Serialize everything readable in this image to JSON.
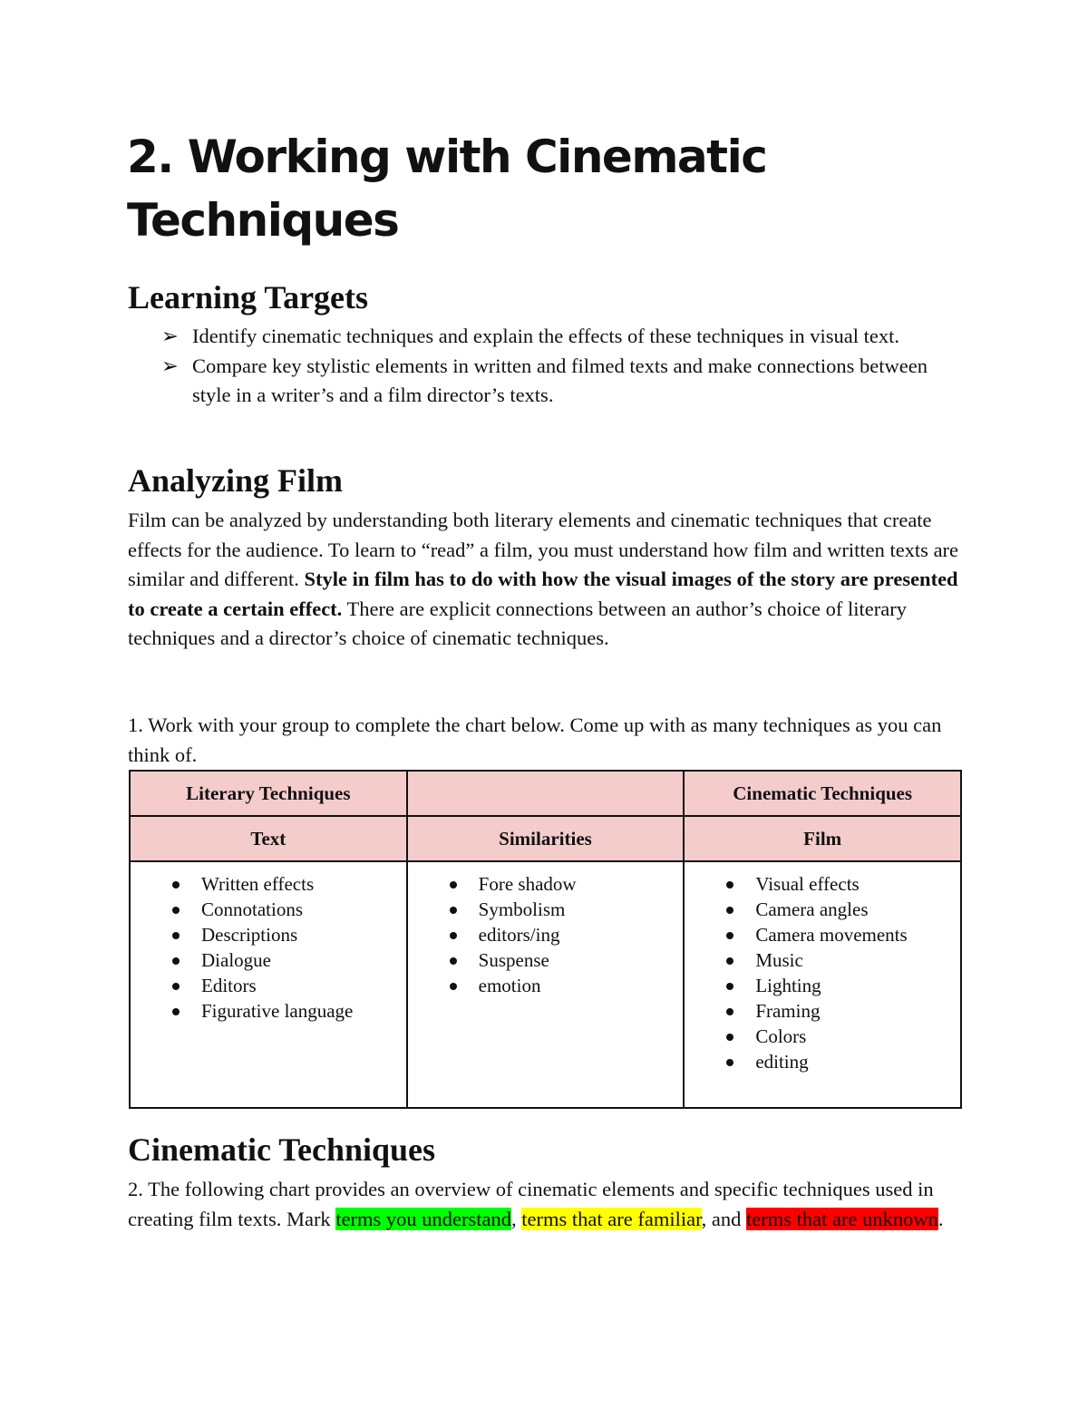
{
  "title": "2. Working with Cinematic Techniques",
  "learning_targets": {
    "heading": "Learning Targets",
    "bullet_icon": "arrowhead-right",
    "items": [
      "Identify cinematic techniques and explain the effects of these techniques in visual text.",
      "Compare key stylistic elements in written and filmed texts and make connections between style in a writer’s and a film director’s texts."
    ]
  },
  "analyzing_film": {
    "heading": "Analyzing Film",
    "text_before": "Film can be analyzed by understanding both literary elements and cinematic techniques that create effects for the audience. To learn to “read” a film, you must understand how film and written texts are similar and different. ",
    "text_bold": "Style in film has to do with how the visual images of the story are presented to create a certain effect.",
    "text_after": " There are explicit connections between an author’s choice of literary techniques and a director’s choice of cinematic techniques.",
    "instruction": "1. Work with your group to complete the chart below. Come up with as many techniques as you can think of."
  },
  "chart": {
    "header_row1": [
      "Literary Techniques",
      "",
      "Cinematic Techniques"
    ],
    "header_row2": [
      "Text",
      "Similarities",
      "Film"
    ],
    "header_color": "#f4cccc",
    "text_items": [
      "Written effects",
      "Connotations",
      "Descriptions",
      "Dialogue",
      "Editors",
      "Figurative language"
    ],
    "similarities_items": [
      "Fore shadow",
      "Symbolism",
      "editors/ing",
      "Suspense",
      "emotion"
    ],
    "film_items": [
      "Visual effects",
      "Camera angles",
      "Camera movements",
      "Music",
      "Lighting",
      "Framing",
      "Colors",
      "editing"
    ]
  },
  "cinematic_techniques": {
    "heading": "Cinematic Techniques",
    "text_before": "2. The following chart provides an overview of cinematic elements and specific techniques used in creating film texts. Mark ",
    "green": "terms you understand",
    "sep1": ", ",
    "yellow": "terms that are familiar",
    "sep2": ", and ",
    "red": "terms that are unknown",
    "end": ".",
    "highlight_colors": {
      "green": "#00ff00",
      "yellow": "#ffff00",
      "red": "#ff0000"
    }
  }
}
